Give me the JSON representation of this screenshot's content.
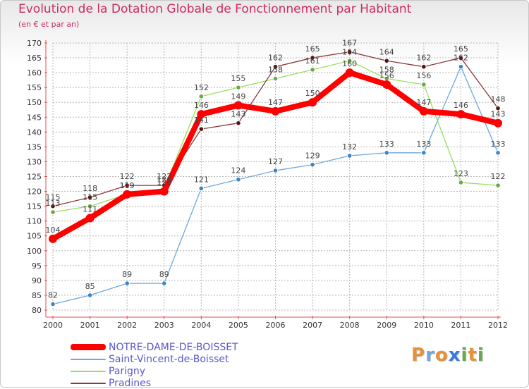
{
  "chart_data": {
    "type": "line",
    "title": "Evolution de la Dotation Globale de Fonctionnement par Habitant",
    "subtitle": "(en € et par an)",
    "xlabel": "",
    "ylabel": "",
    "ylim": [
      80,
      170
    ],
    "ytick_step": 5,
    "grid": true,
    "legend_position": "bottom-left",
    "categories": [
      "2000",
      "2001",
      "2002",
      "2003",
      "2004",
      "2005",
      "2006",
      "2007",
      "2008",
      "2009",
      "2010",
      "2011",
      "2012"
    ],
    "series": [
      {
        "name": "NOTRE-DAME-DE-BOISSET",
        "color": "#ff0000",
        "values": [
          104,
          111,
          119,
          120,
          146,
          149,
          147,
          150,
          160,
          156,
          147,
          146,
          143
        ]
      },
      {
        "name": "Saint-Vincent-de-Boisset",
        "color": "#6fa8dc",
        "marker": "#3d85c6",
        "values": [
          82,
          85,
          89,
          89,
          121,
          124,
          127,
          129,
          132,
          133,
          133,
          162,
          133
        ]
      },
      {
        "name": "Parigny",
        "color": "#99e05a",
        "marker": "#6aa84f",
        "values": [
          113,
          115,
          119,
          121,
          152,
          155,
          158,
          161,
          164,
          158,
          156,
          123,
          122
        ]
      },
      {
        "name": "Pradines",
        "color": "#8b3a3a",
        "marker": "#5b0f0f",
        "values": [
          115,
          118,
          122,
          122,
          141,
          143,
          162,
          165,
          167,
          164,
          162,
          165,
          148
        ]
      }
    ]
  },
  "branding": {
    "logo_letters": [
      "P",
      "r",
      "o",
      "x",
      "i",
      "t",
      "i"
    ],
    "logo_colors": [
      "#e69138",
      "#6fa8dc",
      "#e69138",
      "#3c78d8",
      "#6aa84f",
      "#e69138",
      "#6aa84f"
    ]
  }
}
